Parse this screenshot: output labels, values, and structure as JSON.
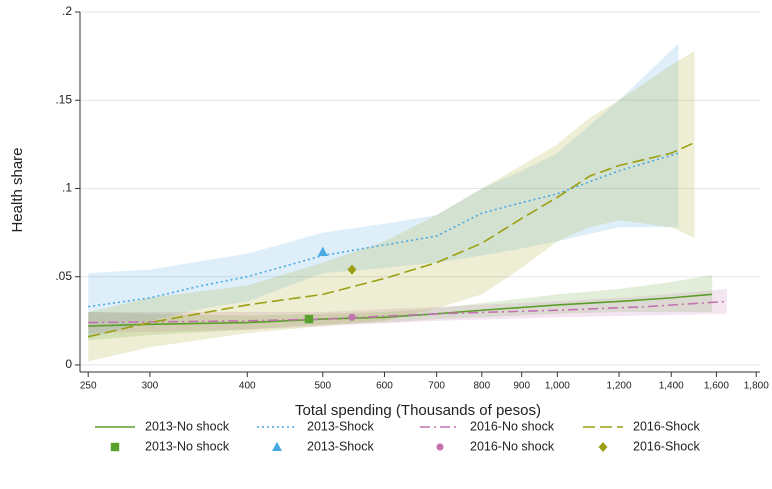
{
  "chart_data": {
    "type": "line",
    "x_label": "Total spending (Thousands of pesos)",
    "y_label": "Health share",
    "xscale": "log",
    "xlim": [
      244,
      1820
    ],
    "ylim": [
      -0.004,
      0.2
    ],
    "xticks": [
      250,
      300,
      400,
      500,
      600,
      700,
      800,
      900,
      {
        "value": 1000,
        "label": "1,000"
      },
      {
        "value": 1200,
        "label": "1,200"
      },
      {
        "value": 1400,
        "label": "1,400"
      },
      {
        "value": 1600,
        "label": "1,600"
      },
      {
        "value": 1800,
        "label": "1,800"
      }
    ],
    "yticks": [
      0,
      {
        "value": 0.05,
        "label": ".05"
      },
      {
        "value": 0.1,
        "label": ".1"
      },
      {
        "value": 0.15,
        "label": ".15"
      },
      {
        "value": 0.2,
        "label": ".2"
      }
    ],
    "grid": true,
    "legend": "bottom",
    "series": [
      {
        "name": "2013-No shock",
        "color": "#5c9e2a",
        "dash": "solid",
        "x": [
          250,
          300,
          400,
          500,
          600,
          700,
          800,
          1000,
          1200,
          1400,
          1580
        ],
        "values": [
          0.022,
          0.023,
          0.024,
          0.026,
          0.027,
          0.029,
          0.031,
          0.034,
          0.036,
          0.038,
          0.04
        ],
        "lower": [
          0.014,
          0.017,
          0.02,
          0.023,
          0.024,
          0.026,
          0.027,
          0.029,
          0.03,
          0.03,
          0.03
        ],
        "upper": [
          0.03,
          0.029,
          0.028,
          0.029,
          0.03,
          0.032,
          0.035,
          0.04,
          0.043,
          0.047,
          0.051
        ]
      },
      {
        "name": "2013-Shock",
        "color": "#4aa8e3",
        "dash": "dot",
        "x": [
          250,
          300,
          350,
          400,
          500,
          600,
          700,
          800,
          900,
          1000,
          1200,
          1430
        ],
        "values": [
          0.033,
          0.038,
          0.045,
          0.05,
          0.062,
          0.068,
          0.073,
          0.086,
          0.092,
          0.097,
          0.11,
          0.12
        ],
        "lower": [
          0.015,
          0.025,
          0.032,
          0.036,
          0.052,
          0.055,
          0.058,
          0.062,
          0.066,
          0.07,
          0.078,
          0.078
        ],
        "upper": [
          0.052,
          0.054,
          0.059,
          0.063,
          0.075,
          0.08,
          0.085,
          0.1,
          0.11,
          0.12,
          0.15,
          0.182
        ]
      },
      {
        "name": "2016-No shock",
        "color": "#c274b0",
        "dash": "dashdot",
        "x": [
          250,
          400,
          500,
          700,
          1000,
          1300,
          1650
        ],
        "values": [
          0.024,
          0.025,
          0.026,
          0.029,
          0.031,
          0.033,
          0.036
        ],
        "lower": [
          0.018,
          0.02,
          0.022,
          0.025,
          0.027,
          0.028,
          0.029
        ],
        "upper": [
          0.03,
          0.03,
          0.03,
          0.033,
          0.036,
          0.039,
          0.043
        ]
      },
      {
        "name": "2016-Shock",
        "color": "#9c9f12",
        "dash": "longdash",
        "x": [
          250,
          300,
          400,
          500,
          600,
          700,
          800,
          900,
          1000,
          1100,
          1200,
          1400,
          1500
        ],
        "values": [
          0.016,
          0.024,
          0.034,
          0.04,
          0.049,
          0.058,
          0.069,
          0.083,
          0.095,
          0.107,
          0.113,
          0.12,
          0.126
        ],
        "lower": [
          0.002,
          0.01,
          0.018,
          0.022,
          0.025,
          0.032,
          0.04,
          0.055,
          0.07,
          0.078,
          0.082,
          0.078,
          0.072
        ],
        "upper": [
          0.03,
          0.038,
          0.045,
          0.058,
          0.07,
          0.085,
          0.1,
          0.113,
          0.125,
          0.14,
          0.15,
          0.17,
          0.178
        ]
      }
    ],
    "markers": [
      {
        "name": "2013-No shock",
        "color": "#5aa02c",
        "shape": "square",
        "x": 480,
        "value": 0.026
      },
      {
        "name": "2013-Shock",
        "color": "#4aa8e3",
        "shape": "triangle",
        "x": 500,
        "value": 0.064
      },
      {
        "name": "2016-No shock",
        "color": "#c274b0",
        "shape": "circle",
        "x": 545,
        "value": 0.027
      },
      {
        "name": "2016-Shock",
        "color": "#9c9f12",
        "shape": "diamond",
        "x": 545,
        "value": 0.054
      }
    ]
  }
}
